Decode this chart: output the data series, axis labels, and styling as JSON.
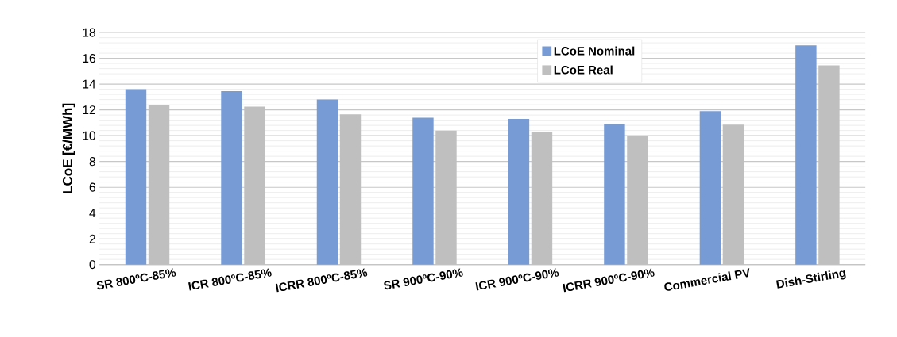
{
  "chart_data": {
    "type": "bar",
    "ylabel": "LCoE [€/MWh]",
    "categories": [
      "SR 800ºC-85%",
      "ICR 800ºC-85%",
      "ICRR 800ºC-85%",
      "SR 900ºC-90%",
      "ICR 900ºC-90%",
      "ICRR 900ºC-90%",
      "Commercial PV",
      "Dish-Stirling"
    ],
    "series": [
      {
        "name": "LCoE Nominal",
        "color": "#779bd4",
        "values": [
          13.6,
          13.45,
          12.8,
          11.4,
          11.3,
          10.9,
          11.9,
          17.0
        ]
      },
      {
        "name": "LCoE Real",
        "color": "#bfbfbf",
        "values": [
          12.4,
          12.25,
          11.65,
          10.4,
          10.3,
          10.0,
          10.85,
          15.45
        ]
      }
    ],
    "ylim": [
      0,
      18
    ],
    "yticks": [
      0,
      2,
      4,
      6,
      8,
      10,
      12,
      14,
      16,
      18
    ],
    "grid": "y",
    "legend": "top"
  }
}
